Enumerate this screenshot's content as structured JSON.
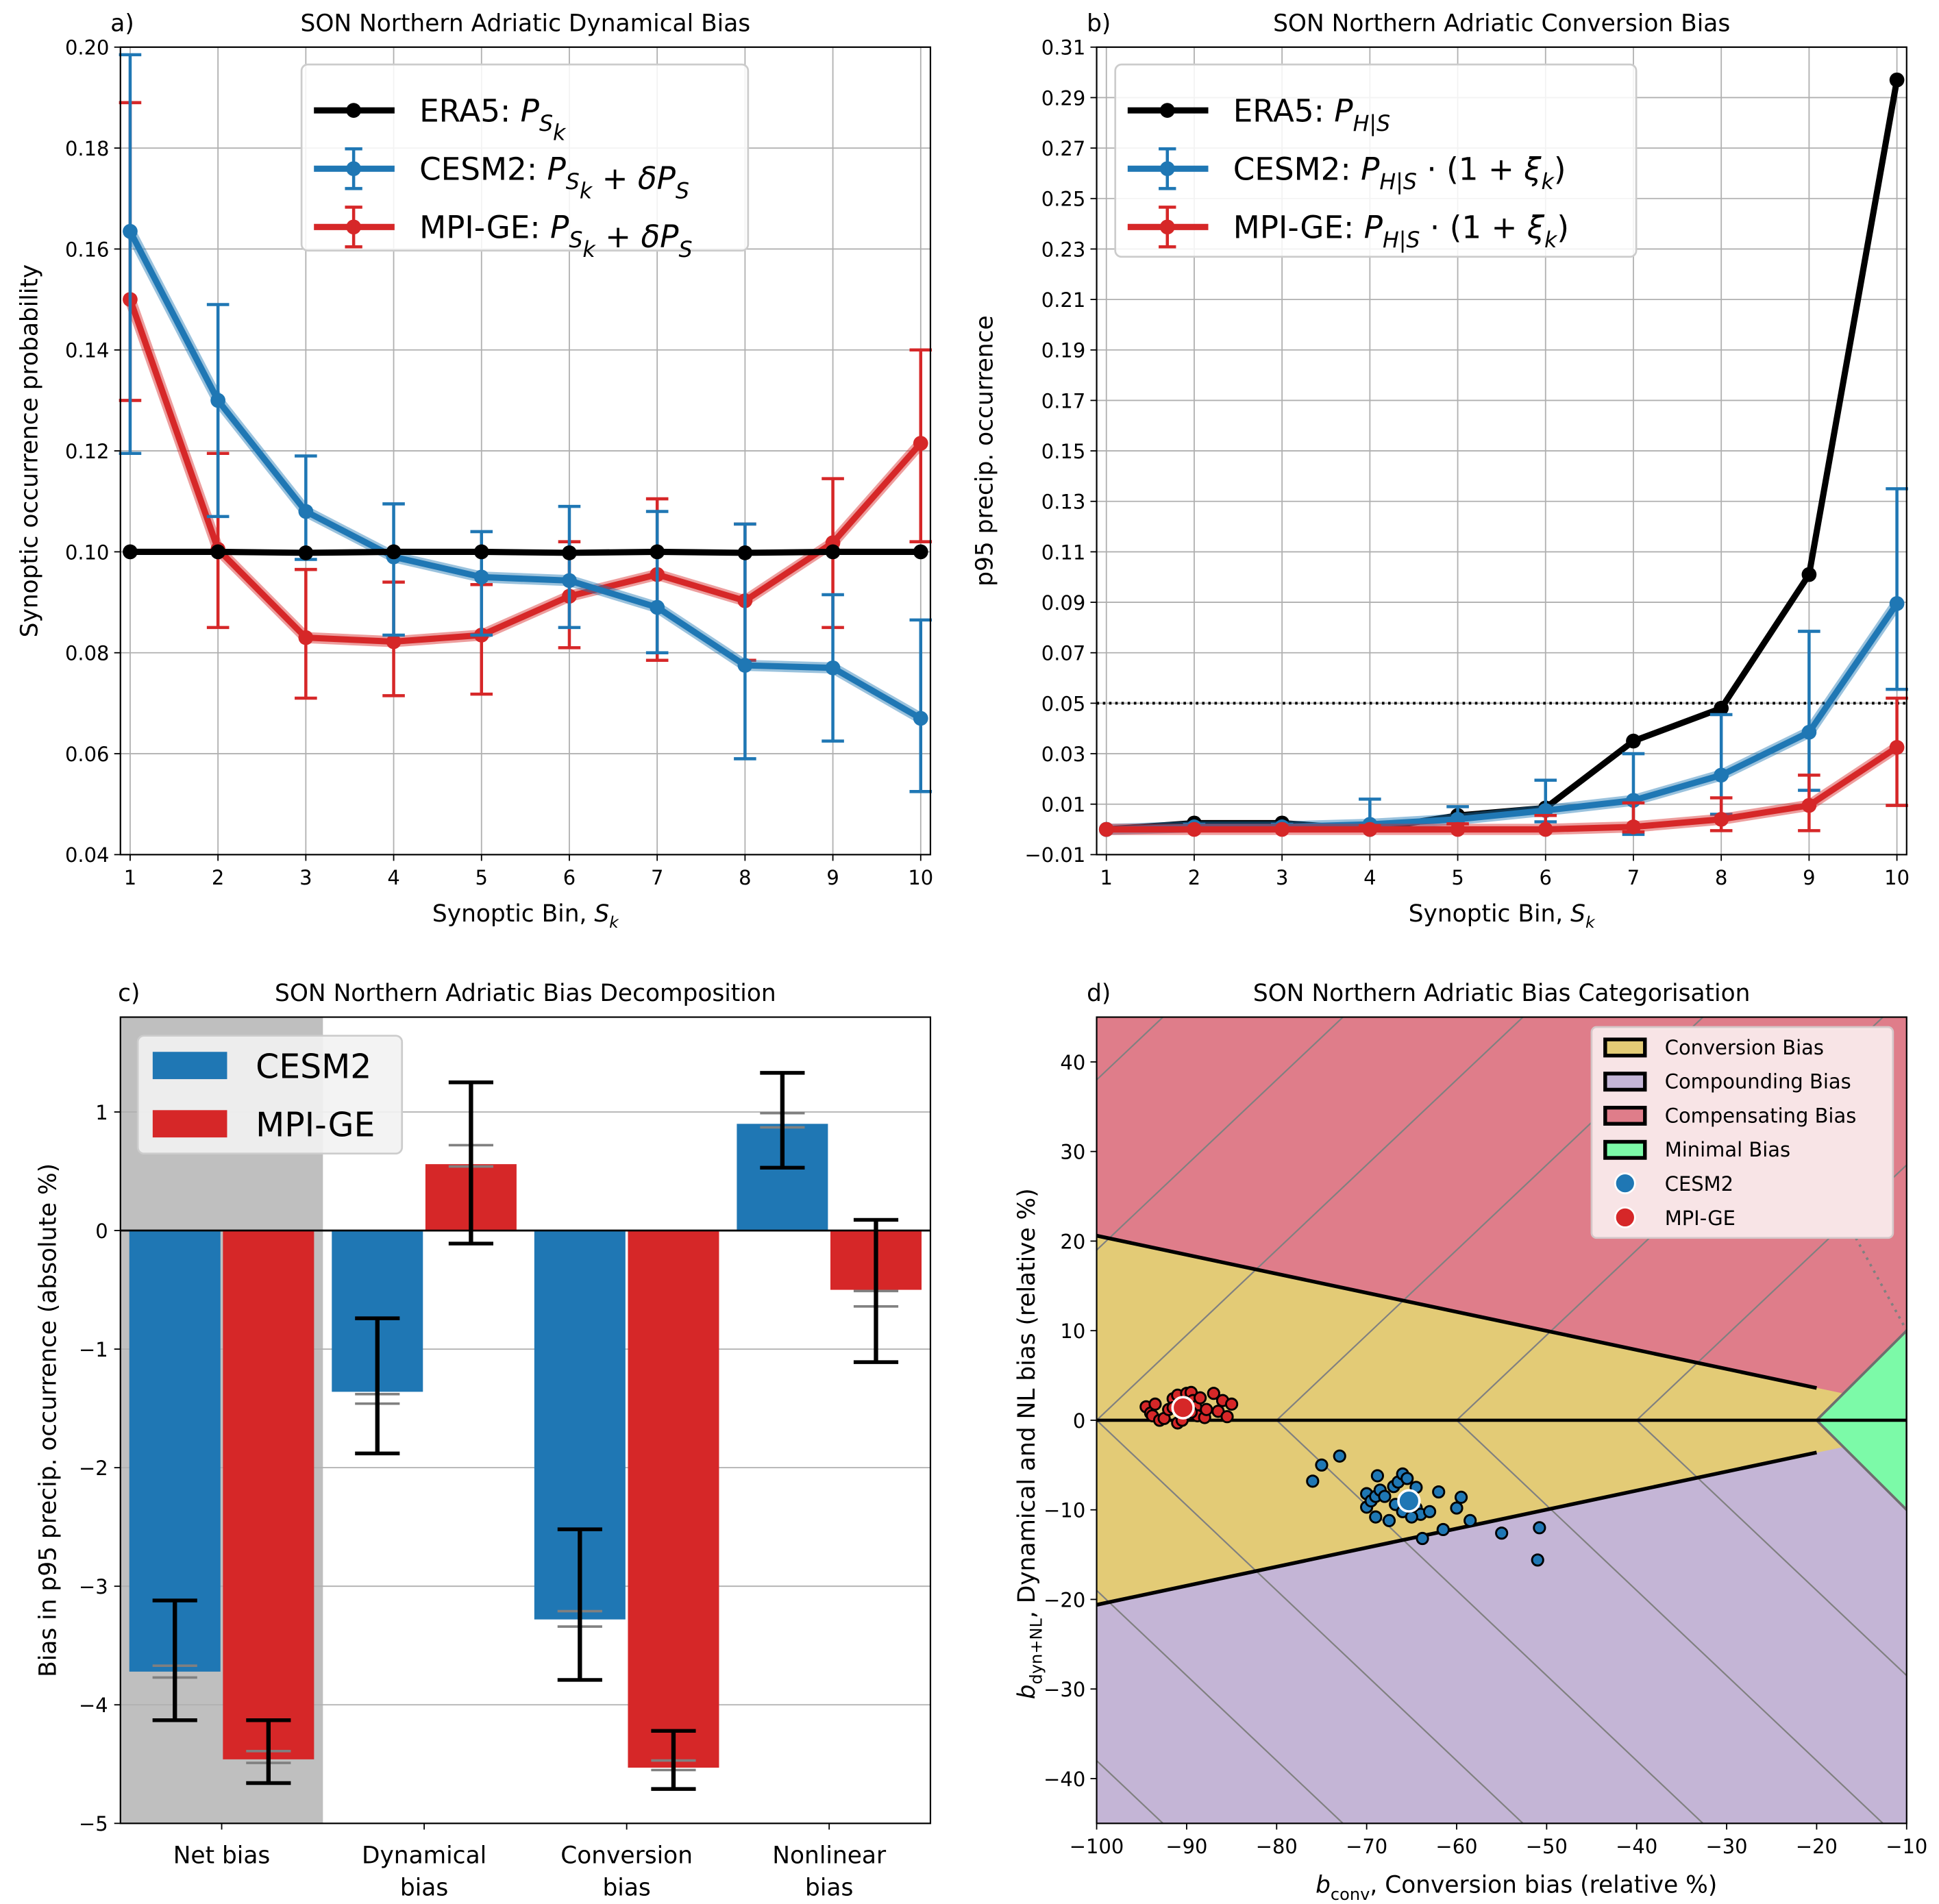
{
  "chart_data": [
    {
      "panel": "a)",
      "type": "line",
      "title": "SON Northern Adriatic Dynamical Bias",
      "xlabel": "Synoptic Bin, S_k",
      "ylabel": "Synoptic occurrence probability",
      "x": [
        1,
        2,
        3,
        4,
        5,
        6,
        7,
        8,
        9,
        10
      ],
      "xticks": [
        "1",
        "2",
        "3",
        "4",
        "5",
        "6",
        "7",
        "8",
        "9",
        "10"
      ],
      "ylim": [
        0.04,
        0.2
      ],
      "yticks": [
        "0.04",
        "0.06",
        "0.08",
        "0.10",
        "0.12",
        "0.14",
        "0.16",
        "0.18",
        "0.20"
      ],
      "grid": true,
      "legend_position": "top-center",
      "series": [
        {
          "name": "ERA5: P_{S_k}",
          "color": "#000000",
          "values": [
            0.1,
            0.1,
            0.0998,
            0.1,
            0.1,
            0.0998,
            0.1,
            0.0998,
            0.1,
            0.1
          ]
        },
        {
          "name": "CESM2: P_{S_k} + δP_{S_k}",
          "color": "#1f77b4",
          "values": [
            0.1635,
            0.13,
            0.108,
            0.099,
            0.095,
            0.0943,
            0.089,
            0.0775,
            0.077,
            0.067
          ],
          "err_low": [
            0.1195,
            0.107,
            0.0985,
            0.0835,
            0.0835,
            0.085,
            0.08,
            0.059,
            0.0625,
            0.0525
          ],
          "err_high": [
            0.1985,
            0.149,
            0.119,
            0.1095,
            0.104,
            0.109,
            0.108,
            0.1055,
            0.0915,
            0.0865
          ]
        },
        {
          "name": "MPI-GE: P_{S_k} + δP_{S_k}",
          "color": "#d62728",
          "values": [
            0.15,
            0.1005,
            0.083,
            0.0822,
            0.0835,
            0.0912,
            0.0955,
            0.0903,
            0.1018,
            0.1215
          ],
          "err_low": [
            0.13,
            0.085,
            0.071,
            0.0715,
            0.0718,
            0.081,
            0.0785,
            0.0785,
            0.085,
            0.102
          ],
          "err_high": [
            0.189,
            0.1195,
            0.0965,
            0.094,
            0.0935,
            0.102,
            0.1105,
            0.1055,
            0.1145,
            0.14
          ]
        }
      ]
    },
    {
      "panel": "b)",
      "type": "line",
      "title": "SON Northern Adriatic Conversion Bias",
      "xlabel": "Synoptic Bin, S_k",
      "ylabel": "p95 precip. occurrence",
      "x": [
        1,
        2,
        3,
        4,
        5,
        6,
        7,
        8,
        9,
        10
      ],
      "xticks": [
        "1",
        "2",
        "3",
        "4",
        "5",
        "6",
        "7",
        "8",
        "9",
        "10"
      ],
      "ylim": [
        -0.01,
        0.31
      ],
      "yticks": [
        "−0.01",
        "0.01",
        "0.03",
        "0.05",
        "0.07",
        "0.09",
        "0.11",
        "0.13",
        "0.15",
        "0.17",
        "0.19",
        "0.21",
        "0.23",
        "0.25",
        "0.27",
        "0.29",
        "0.31"
      ],
      "hline": 0.05,
      "grid": true,
      "legend_position": "top-left",
      "series": [
        {
          "name": "ERA5: P_{H|S_k}",
          "color": "#000000",
          "values": [
            0.0,
            0.0025,
            0.0025,
            0.0,
            0.0055,
            0.0085,
            0.035,
            0.048,
            0.101,
            0.297
          ]
        },
        {
          "name": "CESM2: P_{H|S_k} · (1 + ξ_k)",
          "color": "#1f77b4",
          "values": [
            0.0,
            0.001,
            0.001,
            0.002,
            0.004,
            0.0075,
            0.0115,
            0.0215,
            0.0385,
            0.0895
          ],
          "err_low": [
            0.0,
            0.0,
            0.0,
            0.0,
            0.0,
            0.003,
            -0.002,
            0.006,
            0.0155,
            0.0555
          ],
          "err_high": [
            0.0,
            0.002,
            0.002,
            0.012,
            0.009,
            0.0195,
            0.03,
            0.0455,
            0.0785,
            0.135
          ]
        },
        {
          "name": "MPI-GE: P_{H|S_k} · (1 + ξ_k)",
          "color": "#d62728",
          "values": [
            0.0,
            0.0,
            0.0,
            0.0,
            0.0,
            0.0,
            0.001,
            0.004,
            0.0095,
            0.0325
          ],
          "err_low": [
            0.0,
            0.0,
            0.0,
            0.0,
            0.0,
            0.0,
            -0.001,
            -0.0005,
            -0.0005,
            0.0095
          ],
          "err_high": [
            0.0,
            0.0,
            0.0,
            0.0015,
            0.0022,
            0.0055,
            0.0105,
            0.0125,
            0.0215,
            0.052
          ]
        }
      ]
    },
    {
      "panel": "c)",
      "type": "bar",
      "title": "SON Northern Adriatic Bias Decomposition",
      "ylabel": "Bias in p95 precip. occurrence (absolute %)",
      "categories": [
        [
          "Net bias"
        ],
        [
          "Dynamical",
          "bias"
        ],
        [
          "Conversion",
          "bias"
        ],
        [
          "Nonlinear",
          "bias"
        ]
      ],
      "ylim": [
        -5,
        1.8
      ],
      "yticks": [
        {
          "v": -5,
          "l": "−5"
        },
        {
          "v": -4,
          "l": "−4"
        },
        {
          "v": -3,
          "l": "−3"
        },
        {
          "v": -2,
          "l": "−2"
        },
        {
          "v": -1,
          "l": "−1"
        },
        {
          "v": 0,
          "l": "0"
        },
        {
          "v": 1,
          "l": "1"
        }
      ],
      "grid": true,
      "highlight_category": 0,
      "legend_position": "top-left",
      "series": [
        {
          "name": "CESM2",
          "color": "#1f77b4",
          "values": [
            -3.72,
            -1.36,
            -3.28,
            0.9
          ],
          "err_low": [
            -4.13,
            -1.88,
            -3.79,
            0.53
          ],
          "err_high": [
            -3.12,
            -0.74,
            -2.52,
            1.33
          ],
          "inner_low": [
            -3.77,
            -1.46,
            -3.34,
            0.87
          ],
          "inner_high": [
            -3.67,
            -1.38,
            -3.21,
            0.99
          ]
        },
        {
          "name": "MPI-GE",
          "color": "#d62728",
          "values": [
            -4.46,
            0.56,
            -4.53,
            -0.5
          ],
          "err_low": [
            -4.66,
            -0.11,
            -4.71,
            -1.11
          ],
          "err_high": [
            -4.13,
            1.25,
            -4.22,
            0.09
          ],
          "inner_low": [
            -4.49,
            0.54,
            -4.55,
            -0.64
          ],
          "inner_high": [
            -4.39,
            0.72,
            -4.47,
            -0.51
          ]
        }
      ]
    },
    {
      "panel": "d)",
      "type": "scatter",
      "title": "SON Northern Adriatic Bias Categorisation",
      "xlabel": "b_conv, Conversion bias (relative %)",
      "ylabel": "b_dyn+NL, Dynamical and NL bias (relative %)",
      "xlim": [
        -100,
        -10
      ],
      "ylim": [
        -45,
        45
      ],
      "xticks": [
        {
          "v": -100,
          "l": "−100"
        },
        {
          "v": -90,
          "l": "−90"
        },
        {
          "v": -80,
          "l": "−80"
        },
        {
          "v": -70,
          "l": "−70"
        },
        {
          "v": -60,
          "l": "−60"
        },
        {
          "v": -50,
          "l": "−50"
        },
        {
          "v": -40,
          "l": "−40"
        },
        {
          "v": -30,
          "l": "−30"
        },
        {
          "v": -20,
          "l": "−20"
        },
        {
          "v": -10,
          "l": "−10"
        }
      ],
      "yticks": [
        {
          "v": -40,
          "l": "−40"
        },
        {
          "v": -30,
          "l": "−30"
        },
        {
          "v": -20,
          "l": "−20"
        },
        {
          "v": -10,
          "l": "−10"
        },
        {
          "v": 0,
          "l": "0"
        },
        {
          "v": 10,
          "l": "10"
        },
        {
          "v": 20,
          "l": "20"
        },
        {
          "v": 30,
          "l": "30"
        },
        {
          "v": 40,
          "l": "40"
        }
      ],
      "legend_position": "top-right",
      "regions": [
        {
          "name": "Conversion Bias",
          "color": "#e3cb76"
        },
        {
          "name": "Compounding Bias",
          "color": "#c4b5d6"
        },
        {
          "name": "Compensating Bias",
          "color": "#df7d8a"
        },
        {
          "name": "Minimal Bias",
          "color": "#7cfaa8"
        }
      ],
      "series": [
        {
          "name": "CESM2",
          "color": "#1f77b4",
          "mean": [
            -65.3,
            -9.0
          ],
          "points": [
            [
              -76,
              -6.8
            ],
            [
              -75,
              -5
            ],
            [
              -73,
              -4
            ],
            [
              -70,
              -8.2
            ],
            [
              -70,
              -9.7
            ],
            [
              -69.5,
              -9
            ],
            [
              -69,
              -8.5
            ],
            [
              -69,
              -10.8
            ],
            [
              -68.8,
              -6.2
            ],
            [
              -68.5,
              -7.8
            ],
            [
              -68,
              -8.5
            ],
            [
              -67.5,
              -11.2
            ],
            [
              -67,
              -7.4
            ],
            [
              -66.8,
              -9.4
            ],
            [
              -66.5,
              -6.9
            ],
            [
              -66,
              -6
            ],
            [
              -65.5,
              -6.5
            ],
            [
              -64.5,
              -9.8
            ],
            [
              -64,
              -10.5
            ],
            [
              -63.8,
              -13.2
            ],
            [
              -63,
              -10.2
            ],
            [
              -62,
              -8
            ],
            [
              -61.5,
              -12.2
            ],
            [
              -60,
              -9.8
            ],
            [
              -59.5,
              -8.6
            ],
            [
              -58.5,
              -11.2
            ],
            [
              -55,
              -12.6
            ],
            [
              -51,
              -15.6
            ],
            [
              -50.8,
              -12
            ],
            [
              -64.5,
              -7.5
            ],
            [
              -66,
              -10.2
            ],
            [
              -65,
              -10.8
            ]
          ]
        },
        {
          "name": "MPI-GE",
          "color": "#d62728",
          "mean": [
            -90.4,
            1.4
          ],
          "points": [
            [
              -94.5,
              1.5
            ],
            [
              -94,
              0.8
            ],
            [
              -93.8,
              0.5
            ],
            [
              -93.5,
              1.8
            ],
            [
              -93,
              0
            ],
            [
              -92.5,
              0.2
            ],
            [
              -92,
              1.2
            ],
            [
              -91.5,
              2.4
            ],
            [
              -91,
              2.8
            ],
            [
              -91,
              -0.3
            ],
            [
              -90.5,
              0
            ],
            [
              -90,
              3
            ],
            [
              -89.5,
              3.1
            ],
            [
              -89.3,
              2.2
            ],
            [
              -89,
              1.5
            ],
            [
              -88.8,
              0.5
            ],
            [
              -88.5,
              2.5
            ],
            [
              -88,
              0.3
            ],
            [
              -87.8,
              1.2
            ],
            [
              -87,
              3
            ],
            [
              -86.5,
              1
            ],
            [
              -86,
              2.2
            ],
            [
              -85.5,
              0.4
            ],
            [
              -85,
              1.8
            ],
            [
              -89.5,
              0.9
            ],
            [
              -91.5,
              1.4
            ],
            [
              -90.2,
              2.0
            ]
          ]
        }
      ]
    }
  ]
}
